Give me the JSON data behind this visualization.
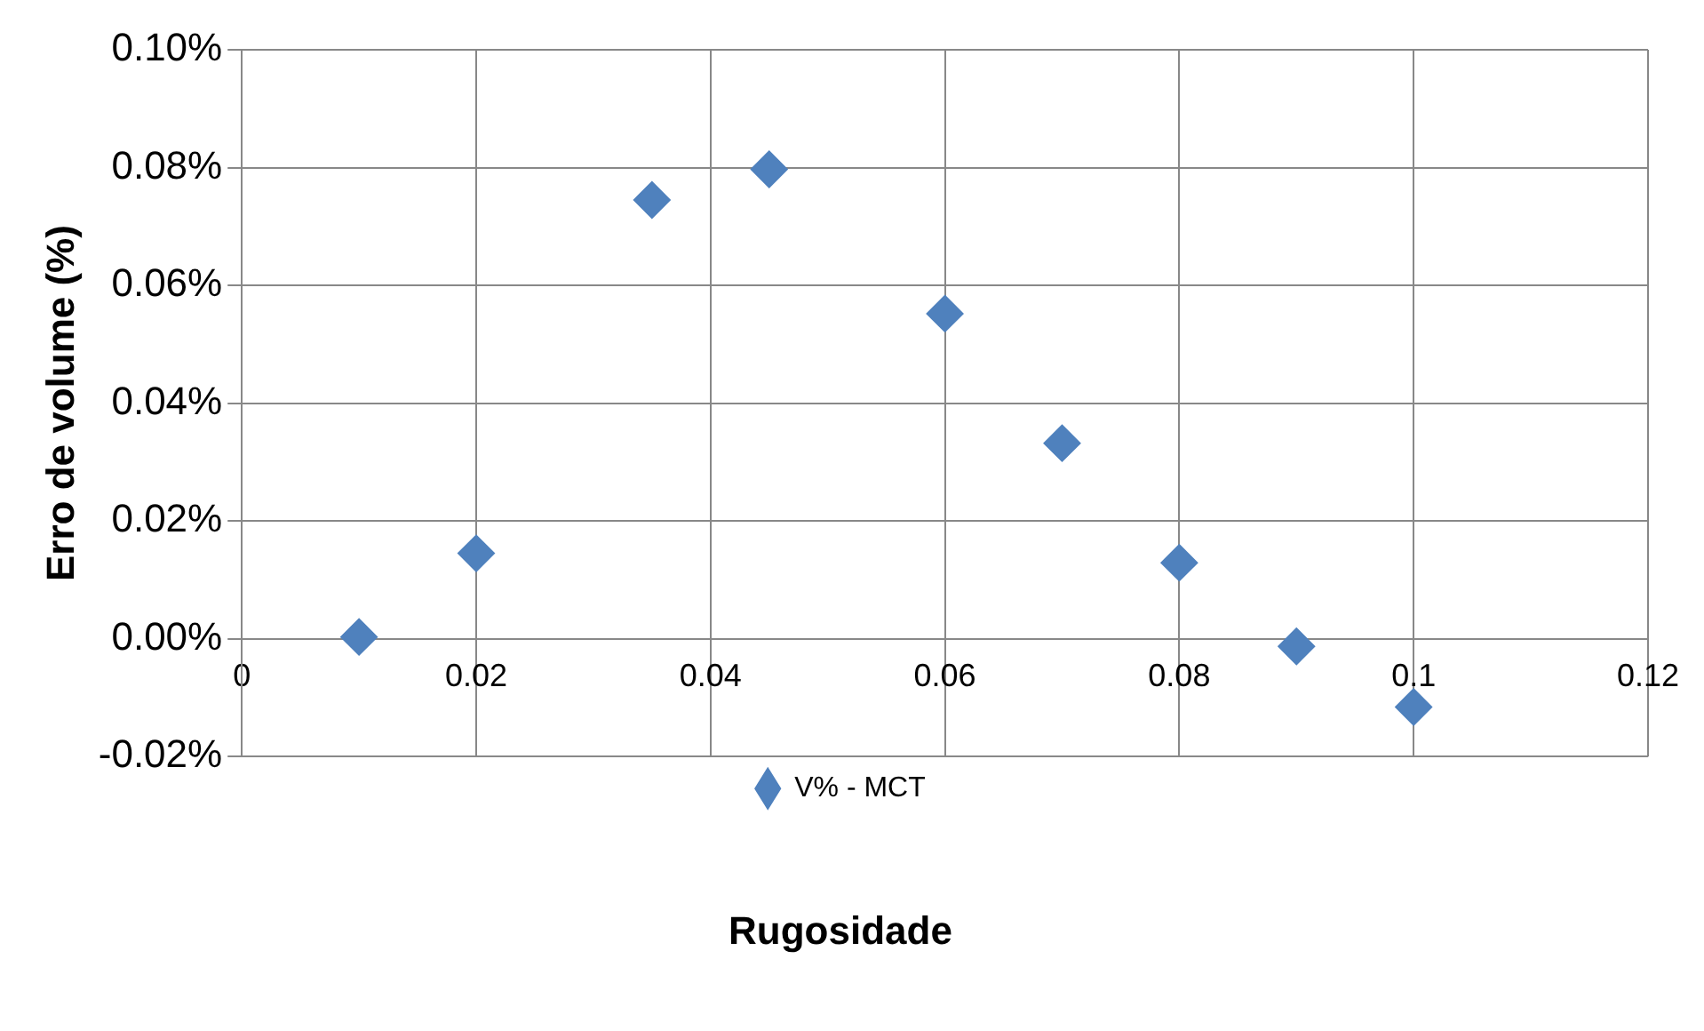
{
  "chart_data": {
    "type": "scatter",
    "xlabel": "Rugosidade",
    "ylabel": "Erro de volume (%)",
    "x": [
      0.01,
      0.02,
      0.035,
      0.045,
      0.06,
      0.07,
      0.08,
      0.09,
      0.1
    ],
    "series": [
      {
        "name": "V% - MCT",
        "color": "#4f81bd",
        "values": [
          0.0003,
          0.0145,
          0.0745,
          0.0797,
          0.0552,
          0.0332,
          0.0129,
          -0.0013,
          -0.0116
        ]
      }
    ],
    "xlim": [
      0,
      0.12
    ],
    "xticks": [
      0,
      0.02,
      0.04,
      0.06,
      0.08,
      0.1,
      0.12
    ],
    "ylim": [
      -0.02,
      0.1
    ],
    "yticks": [
      {
        "value": -0.02,
        "label": "-0.02%"
      },
      {
        "value": 0,
        "label": "0.00%"
      },
      {
        "value": 0.02,
        "label": "0.02%"
      },
      {
        "value": 0.04,
        "label": "0.04%"
      },
      {
        "value": 0.06,
        "label": "0.06%"
      },
      {
        "value": 0.08,
        "label": "0.08%"
      },
      {
        "value": 0.1,
        "label": "0.10%"
      }
    ],
    "grid": true,
    "legend": "bottom",
    "marker": "diamond"
  }
}
